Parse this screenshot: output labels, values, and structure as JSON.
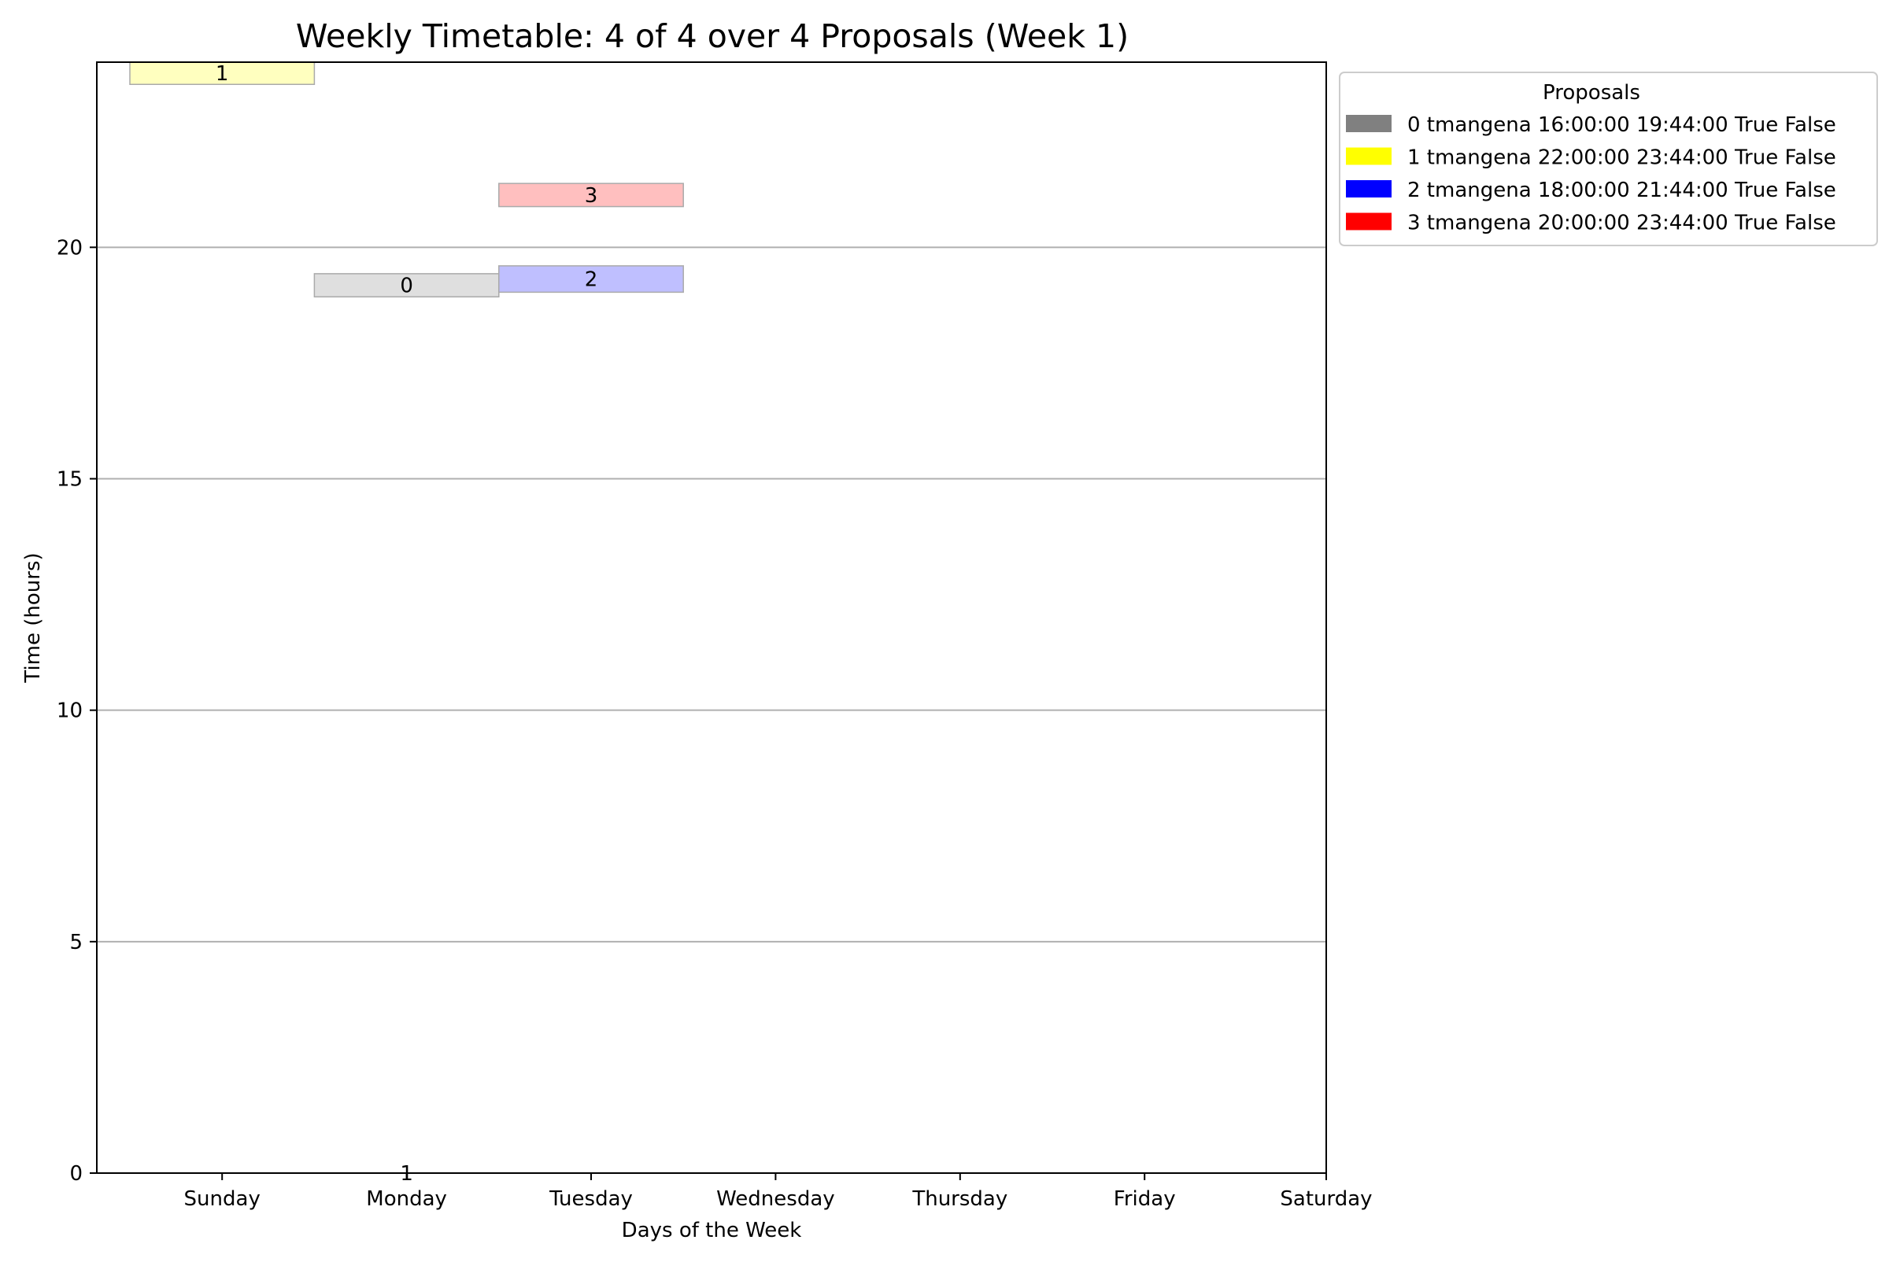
{
  "chart_data": {
    "type": "timetable",
    "title": "Weekly Timetable: 4 of 4 over 4 Proposals (Week 1)",
    "xlabel": "Days of the Week",
    "ylabel": "Time (hours)",
    "categories": [
      "Sunday",
      "Monday",
      "Tuesday",
      "Wednesday",
      "Thursday",
      "Friday",
      "Saturday"
    ],
    "yticks": [
      0,
      5,
      10,
      15,
      20
    ],
    "ylim": [
      0,
      24
    ],
    "grid": "horizontal",
    "legend": {
      "title": "Proposals",
      "placement": "outside-top-right",
      "entries": [
        {
          "label": "0 tmangena 16:00:00 19:44:00 True False",
          "color": "#808080"
        },
        {
          "label": "1 tmangena 22:00:00 23:44:00 True False",
          "color": "#ffff00"
        },
        {
          "label": "2 tmangena 18:00:00 21:44:00 True False",
          "color": "#0000ff"
        },
        {
          "label": "3 tmangena 20:00:00 23:44:00 True False",
          "color": "#ff0000"
        }
      ]
    },
    "blocks": [
      {
        "label": "0",
        "day_start": 1,
        "day_end": 2,
        "y_start": 18.93,
        "y_end": 19.43,
        "color": "#808080"
      },
      {
        "label": "1",
        "day_start": 0,
        "day_end": 1,
        "y_start": 23.52,
        "y_end": 24.0,
        "color": "#ffff00"
      },
      {
        "label": "2",
        "day_start": 2,
        "day_end": 3,
        "y_start": 19.03,
        "y_end": 19.6,
        "color": "#0000ff"
      },
      {
        "label": "3",
        "day_start": 2,
        "day_end": 3,
        "y_start": 20.88,
        "y_end": 21.38,
        "color": "#ff0000"
      }
    ],
    "annotations": [
      {
        "text": "1",
        "day": 1.5,
        "y": 0
      }
    ]
  }
}
